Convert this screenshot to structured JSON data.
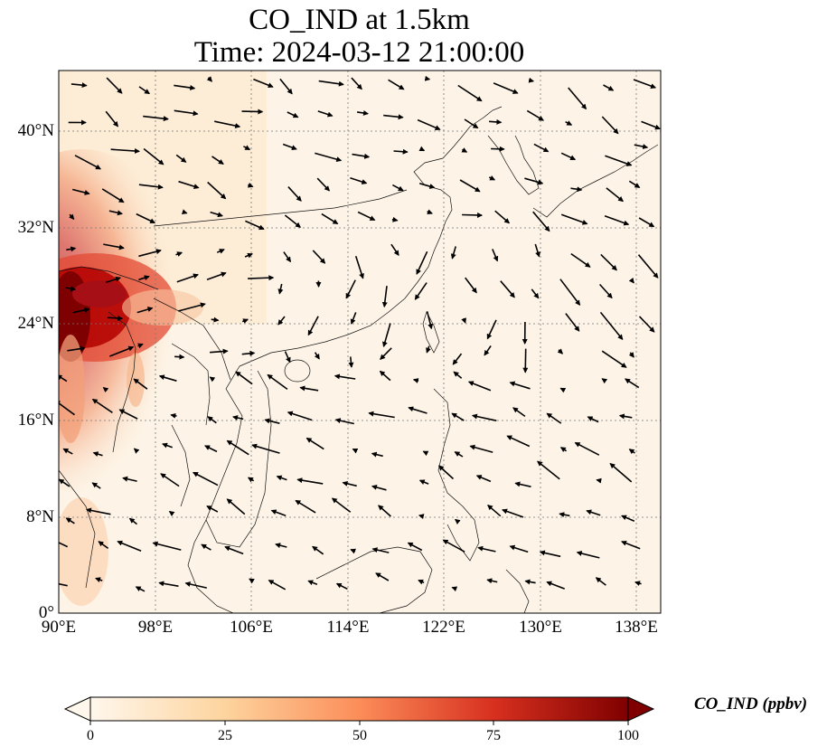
{
  "title": {
    "line1": "CO_IND at 1.5km",
    "line2": "Time: 2024-03-12 21:00:00"
  },
  "map": {
    "projection": "PlateCarree",
    "lon_range": [
      90,
      140
    ],
    "lat_range": [
      0,
      45
    ],
    "gridlines": "dotted",
    "y_ticks": [
      {
        "value": 0,
        "label": "0°"
      },
      {
        "value": 8,
        "label": "8°N"
      },
      {
        "value": 16,
        "label": "16°N"
      },
      {
        "value": 24,
        "label": "24°N"
      },
      {
        "value": 32,
        "label": "32°N"
      },
      {
        "value": 40,
        "label": "40°N"
      }
    ],
    "x_ticks": [
      {
        "value": 90,
        "label": "90°E"
      },
      {
        "value": 98,
        "label": "98°E"
      },
      {
        "value": 106,
        "label": "106°E"
      },
      {
        "value": 114,
        "label": "114°E"
      },
      {
        "value": 122,
        "label": "122°E"
      },
      {
        "value": 130,
        "label": "130°E"
      },
      {
        "value": 138,
        "label": "138°E"
      }
    ]
  },
  "colorbar": {
    "label": "CO_IND (ppbv)",
    "colormap": "OrRd",
    "range": [
      0,
      100
    ],
    "extend": "both",
    "ticks": [
      "0",
      "25",
      "50",
      "75",
      "100"
    ],
    "colors": [
      "#fff7ec",
      "#fdd49e",
      "#fc8d59",
      "#d7301f",
      "#7f0000"
    ]
  }
}
